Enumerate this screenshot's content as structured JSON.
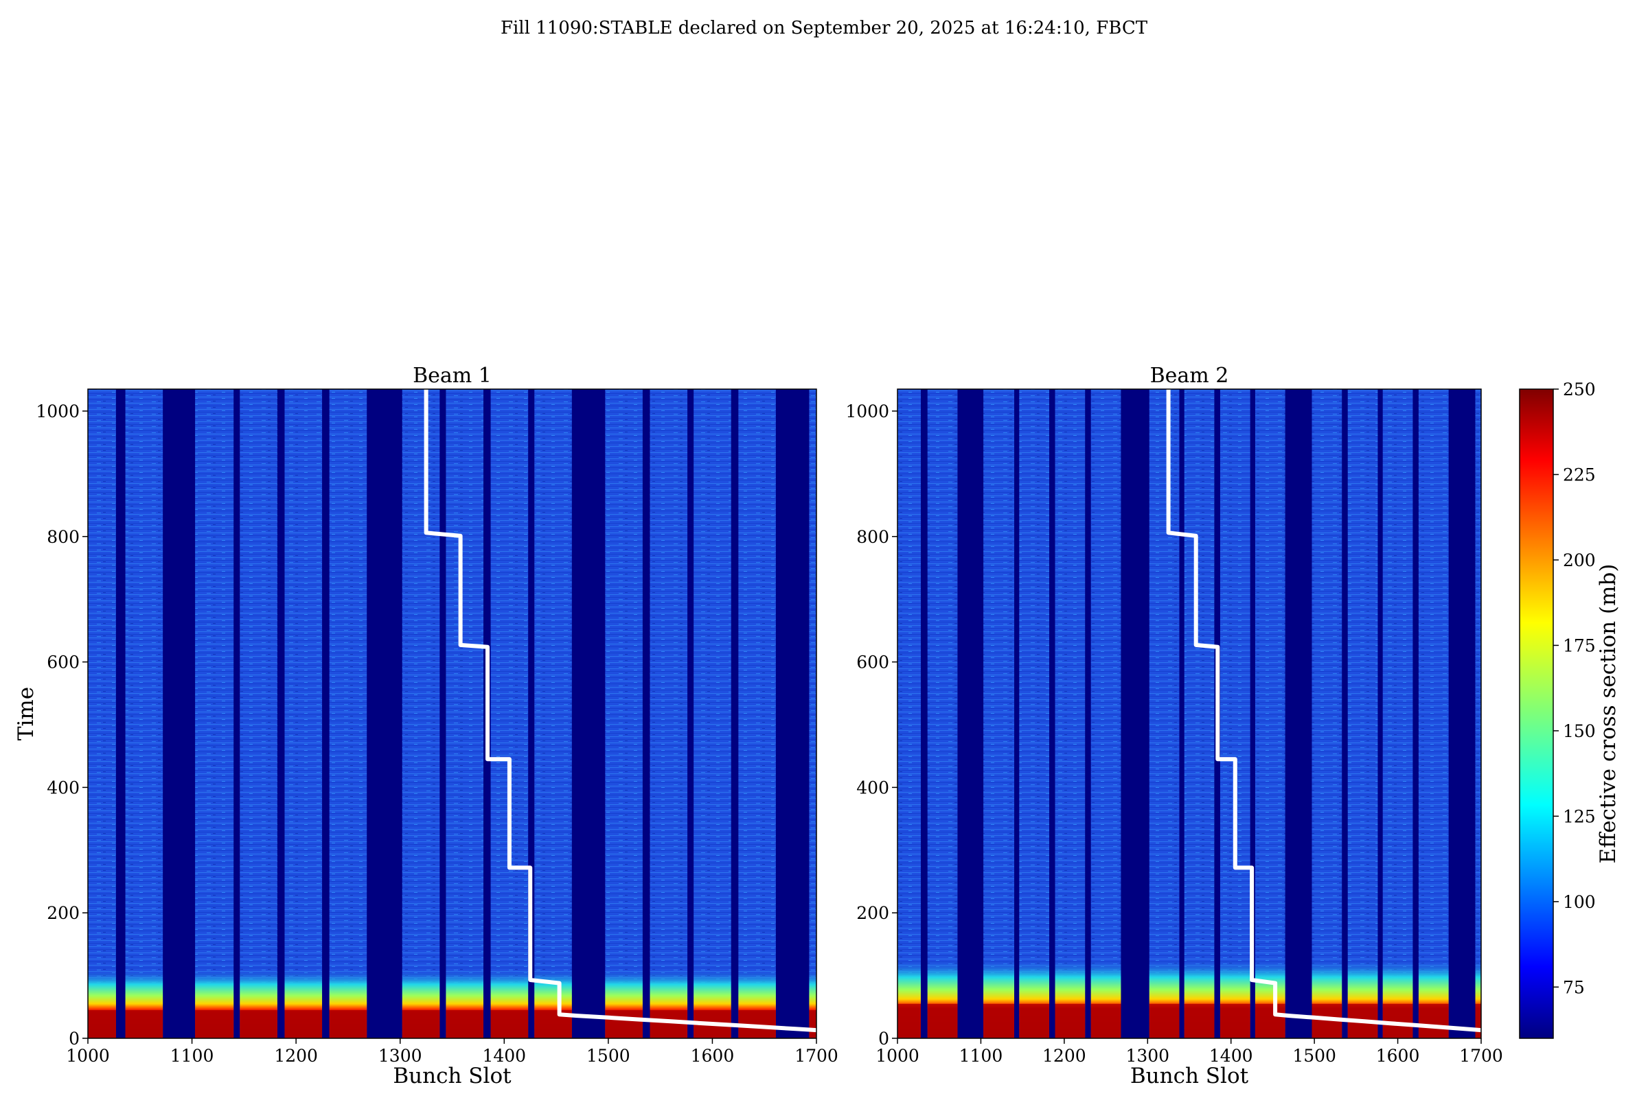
{
  "suptitle": "Fill 11090:STABLE declared on September 20, 2025 at 16:24:10, FBCT",
  "colors": {
    "background": "#000080",
    "band": "#1f4fe0",
    "line": "#ffffff"
  },
  "chart_data": [
    {
      "type": "heatmap",
      "title": "Beam 1",
      "xlabel": "Bunch Slot",
      "ylabel": "Time",
      "xlim": [
        1000,
        1700
      ],
      "ylim": [
        0,
        1035
      ],
      "xticks": [
        1000,
        1100,
        1200,
        1300,
        1400,
        1500,
        1600,
        1700
      ],
      "yticks": [
        0,
        200,
        400,
        600,
        800,
        1000
      ],
      "filled_slot_bands": [
        [
          1000,
          1027
        ],
        [
          1036,
          1072
        ],
        [
          1103,
          1140
        ],
        [
          1146,
          1182
        ],
        [
          1189,
          1225
        ],
        [
          1232,
          1268
        ],
        [
          1302,
          1338
        ],
        [
          1344,
          1380
        ],
        [
          1387,
          1423
        ],
        [
          1429,
          1465
        ],
        [
          1497,
          1533
        ],
        [
          1540,
          1576
        ],
        [
          1582,
          1618
        ],
        [
          1625,
          1661
        ],
        [
          1693,
          1700
        ]
      ],
      "early_time_region": {
        "hot_until": 45,
        "warm_until": 110
      },
      "overlay_line": {
        "x": [
          1325,
          1325,
          1358,
          1358,
          1384,
          1384,
          1405,
          1405,
          1425,
          1425,
          1453,
          1453,
          1470,
          1500,
          1530,
          1560,
          1590,
          1620,
          1650,
          1680,
          1700
        ],
        "y": [
          1035,
          806,
          801,
          627,
          624,
          445,
          445,
          272,
          272,
          93,
          88,
          38,
          36,
          33,
          30,
          27,
          24,
          21,
          18,
          15,
          13
        ]
      }
    },
    {
      "type": "heatmap",
      "title": "Beam 2",
      "xlabel": "Bunch Slot",
      "ylabel": "",
      "xlim": [
        1000,
        1700
      ],
      "ylim": [
        0,
        1035
      ],
      "xticks": [
        1000,
        1100,
        1200,
        1300,
        1400,
        1500,
        1600,
        1700
      ],
      "yticks": [
        0,
        200,
        400,
        600,
        800,
        1000
      ],
      "filled_slot_bands": [
        [
          1000,
          1028
        ],
        [
          1036,
          1072
        ],
        [
          1103,
          1140
        ],
        [
          1146,
          1182
        ],
        [
          1189,
          1225
        ],
        [
          1232,
          1268
        ],
        [
          1302,
          1338
        ],
        [
          1344,
          1380
        ],
        [
          1387,
          1423
        ],
        [
          1429,
          1465
        ],
        [
          1497,
          1533
        ],
        [
          1540,
          1576
        ],
        [
          1582,
          1618
        ],
        [
          1625,
          1661
        ],
        [
          1693,
          1700
        ]
      ],
      "early_time_region": {
        "hot_until": 55,
        "warm_until": 125
      },
      "overlay_line": {
        "x": [
          1325,
          1325,
          1358,
          1358,
          1384,
          1384,
          1405,
          1405,
          1425,
          1425,
          1453,
          1453,
          1470,
          1500,
          1530,
          1560,
          1590,
          1620,
          1650,
          1680,
          1700
        ],
        "y": [
          1035,
          806,
          801,
          627,
          624,
          445,
          445,
          272,
          272,
          93,
          88,
          38,
          36,
          33,
          30,
          27,
          24,
          21,
          18,
          15,
          13
        ]
      }
    }
  ],
  "colorbar": {
    "label": "Effective cross section (mb)",
    "min": 60,
    "max": 250,
    "ticks": [
      75,
      100,
      125,
      150,
      175,
      200,
      225,
      250
    ],
    "colormap": "jet"
  }
}
